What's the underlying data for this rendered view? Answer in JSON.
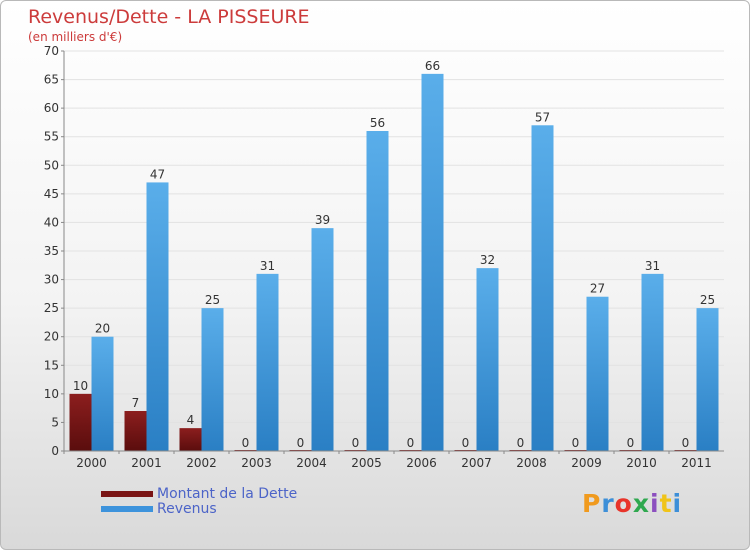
{
  "header": {
    "title": "Revenus/Dette - LA PISSEURE",
    "subtitle": "(en milliers d'€)"
  },
  "chart_data": {
    "type": "bar",
    "title": "Revenus/Dette - LA PISSEURE",
    "subtitle": "(en milliers d'€)",
    "categories": [
      "2000",
      "2001",
      "2002",
      "2003",
      "2004",
      "2005",
      "2006",
      "2007",
      "2008",
      "2009",
      "2010",
      "2011"
    ],
    "series": [
      {
        "name": "Montant de la Dette",
        "values": [
          10,
          7,
          4,
          0,
          0,
          0,
          0,
          0,
          0,
          0,
          0,
          0
        ],
        "color": "#7a1414"
      },
      {
        "name": "Revenus",
        "values": [
          20,
          47,
          25,
          31,
          39,
          56,
          66,
          32,
          57,
          27,
          31,
          25
        ],
        "color": "#3d93dc"
      }
    ],
    "ylim": [
      0,
      70
    ],
    "yticks": [
      0,
      5,
      10,
      15,
      20,
      25,
      30,
      35,
      40,
      45,
      50,
      55,
      60,
      65,
      70
    ],
    "grid": true,
    "legend_position": "bottom-left"
  },
  "legend": {
    "items": [
      {
        "label": "Montant de la Dette",
        "color": "#7a1414"
      },
      {
        "label": "Revenus",
        "color": "#3d93dc"
      }
    ]
  },
  "logo": {
    "text": "Proxiti",
    "colors": [
      "#f09a1e",
      "#3d8fd8",
      "#e8342a",
      "#2fa84f",
      "#8c4fbf",
      "#f0c419",
      "#3d8fd8"
    ]
  }
}
